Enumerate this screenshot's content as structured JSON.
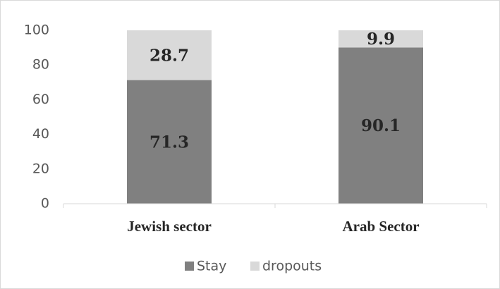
{
  "chart_data": {
    "type": "stacked-bar",
    "categories": [
      "Jewish sector",
      "Arab Sector"
    ],
    "series": [
      {
        "name": "Stay",
        "color": "#808080",
        "values": [
          71.3,
          90.1
        ]
      },
      {
        "name": "dropouts",
        "color": "#d9d9d9",
        "values": [
          28.7,
          9.9
        ]
      }
    ],
    "ylim": [
      0,
      100
    ],
    "yticks": [
      0,
      20,
      40,
      60,
      80,
      100
    ],
    "grid": false,
    "legend": "bottom"
  }
}
